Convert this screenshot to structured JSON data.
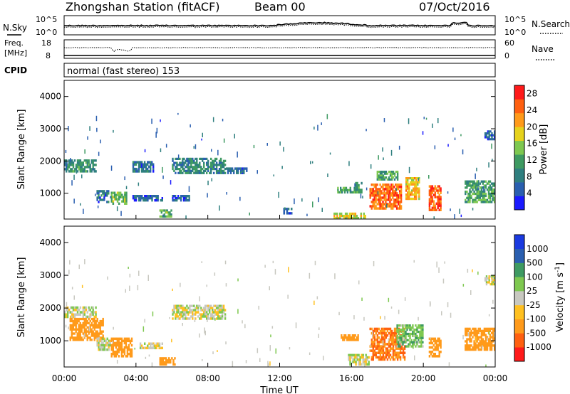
{
  "header": {
    "station": "Zhongshan Station (fitACF)",
    "beam": "Beam 00",
    "date": "07/Oct/2016"
  },
  "panels": {
    "nsky": {
      "left_label": "N.Sky",
      "left_ticks": [
        "10^5",
        "10^0"
      ],
      "right_ticks": [
        "10^5",
        "10^0"
      ],
      "right_label": "N.Search"
    },
    "freq": {
      "left_label_1": "Freq.",
      "left_label_2": "[MHz]",
      "left_ticks": [
        "18",
        "8"
      ],
      "right_ticks": [
        "60",
        "0"
      ],
      "right_label": "Nave"
    },
    "cpid": {
      "label": "CPID",
      "text": "normal (fast stereo) 153"
    }
  },
  "colors": {
    "power_scale": [
      "#1a1aff",
      "#2a5fb0",
      "#2f7f7f",
      "#3e9a62",
      "#7ec850",
      "#e6d21c",
      "#ff9a1a",
      "#ff6010",
      "#ff1a1a"
    ],
    "velocity_scale": [
      "#ff1a1a",
      "#ff6010",
      "#ff9a1a",
      "#ffc020",
      "#c8c8c0",
      "#7ec850",
      "#3e9a62",
      "#2a5fb0",
      "#1a3ae0"
    ]
  },
  "chart_data": [
    {
      "type": "heatmap",
      "name": "power",
      "xlabel": "Time UT",
      "ylabel": "Slant Range [km]",
      "xlim": [
        0,
        24
      ],
      "ylim": [
        200,
        4500
      ],
      "yticks": [
        1000,
        2000,
        3000,
        4000
      ],
      "colorbar": {
        "label": "Power [dB]",
        "ticks": [
          4,
          8,
          12,
          16,
          20,
          24,
          28
        ],
        "range": [
          0,
          30
        ]
      },
      "echo_regions": [
        {
          "t0": 0.0,
          "t1": 1.8,
          "r0": 1650,
          "r1": 2050,
          "level": 10
        },
        {
          "t0": 1.8,
          "t1": 2.5,
          "r0": 700,
          "r1": 1100,
          "level": 7
        },
        {
          "t0": 2.6,
          "t1": 3.5,
          "r0": 650,
          "r1": 1050,
          "level": 14
        },
        {
          "t0": 3.8,
          "t1": 5.0,
          "r0": 1650,
          "r1": 2000,
          "level": 7
        },
        {
          "t0": 3.8,
          "t1": 5.5,
          "r0": 750,
          "r1": 950,
          "level": 6
        },
        {
          "t0": 5.3,
          "t1": 6.0,
          "r0": 250,
          "r1": 500,
          "level": 13
        },
        {
          "t0": 6.0,
          "t1": 9.0,
          "r0": 1600,
          "r1": 2100,
          "level": 9
        },
        {
          "t0": 6.0,
          "t1": 7.0,
          "r0": 750,
          "r1": 950,
          "level": 6
        },
        {
          "t0": 9.0,
          "t1": 10.2,
          "r0": 1600,
          "r1": 1800,
          "level": 6
        },
        {
          "t0": 12.2,
          "t1": 12.7,
          "r0": 350,
          "r1": 550,
          "level": 6
        },
        {
          "t0": 15.0,
          "t1": 16.8,
          "r0": 200,
          "r1": 400,
          "level": 18
        },
        {
          "t0": 15.2,
          "t1": 16.2,
          "r0": 1000,
          "r1": 1200,
          "level": 12
        },
        {
          "t0": 16.2,
          "t1": 16.6,
          "r0": 1000,
          "r1": 1350,
          "level": 11
        },
        {
          "t0": 17.0,
          "t1": 18.8,
          "r0": 500,
          "r1": 1300,
          "level": 24
        },
        {
          "t0": 17.4,
          "t1": 18.6,
          "r0": 1400,
          "r1": 1700,
          "level": 12
        },
        {
          "t0": 19.0,
          "t1": 19.8,
          "r0": 800,
          "r1": 1500,
          "level": 20
        },
        {
          "t0": 20.3,
          "t1": 21.0,
          "r0": 450,
          "r1": 1250,
          "level": 26
        },
        {
          "t0": 22.3,
          "t1": 24.0,
          "r0": 700,
          "r1": 1400,
          "level": 12
        },
        {
          "t0": 23.4,
          "t1": 24.0,
          "r0": 2650,
          "r1": 2950,
          "level": 6
        }
      ]
    },
    {
      "type": "heatmap",
      "name": "velocity",
      "xlabel": "Time UT",
      "ylabel": "Slant Range [km]",
      "xlim": [
        0,
        24
      ],
      "ylim": [
        200,
        4500
      ],
      "yticks": [
        1000,
        2000,
        3000,
        4000
      ],
      "xticks": [
        "00:00",
        "04:00",
        "08:00",
        "12:00",
        "16:00",
        "20:00",
        "00:00"
      ],
      "colorbar": {
        "label": "Velocity [m s^-1]",
        "ticks": [
          "1000",
          "500",
          "100",
          "25",
          "-25",
          "-100",
          "-500",
          "-1000"
        ],
        "range": [
          -1200,
          1200
        ]
      },
      "echo_regions": [
        {
          "t0": 0.0,
          "t1": 1.8,
          "r0": 1700,
          "r1": 2050,
          "velocity": 0
        },
        {
          "t0": 0.3,
          "t1": 2.2,
          "r0": 1000,
          "r1": 1700,
          "velocity": -300
        },
        {
          "t0": 1.8,
          "t1": 2.6,
          "r0": 700,
          "r1": 1100,
          "velocity": 0
        },
        {
          "t0": 2.6,
          "t1": 3.8,
          "r0": 500,
          "r1": 1100,
          "velocity": -400
        },
        {
          "t0": 4.2,
          "t1": 5.5,
          "r0": 750,
          "r1": 950,
          "velocity": 0
        },
        {
          "t0": 5.3,
          "t1": 6.2,
          "r0": 250,
          "r1": 500,
          "velocity": -400
        },
        {
          "t0": 6.0,
          "t1": 9.0,
          "r0": 1650,
          "r1": 2100,
          "velocity": 0
        },
        {
          "t0": 15.4,
          "t1": 16.4,
          "r0": 1000,
          "r1": 1200,
          "velocity": -400
        },
        {
          "t0": 15.8,
          "t1": 17.0,
          "r0": 250,
          "r1": 600,
          "velocity": 0
        },
        {
          "t0": 17.0,
          "t1": 19.0,
          "r0": 400,
          "r1": 1400,
          "velocity": -500
        },
        {
          "t0": 18.5,
          "t1": 20.0,
          "r0": 800,
          "r1": 1500,
          "velocity": 80
        },
        {
          "t0": 20.3,
          "t1": 21.0,
          "r0": 500,
          "r1": 1100,
          "velocity": -200
        },
        {
          "t0": 22.3,
          "t1": 24.0,
          "r0": 700,
          "r1": 1400,
          "velocity": -400
        },
        {
          "t0": 23.4,
          "t1": 24.0,
          "r0": 2700,
          "r1": 3000,
          "velocity": 0
        }
      ]
    }
  ]
}
